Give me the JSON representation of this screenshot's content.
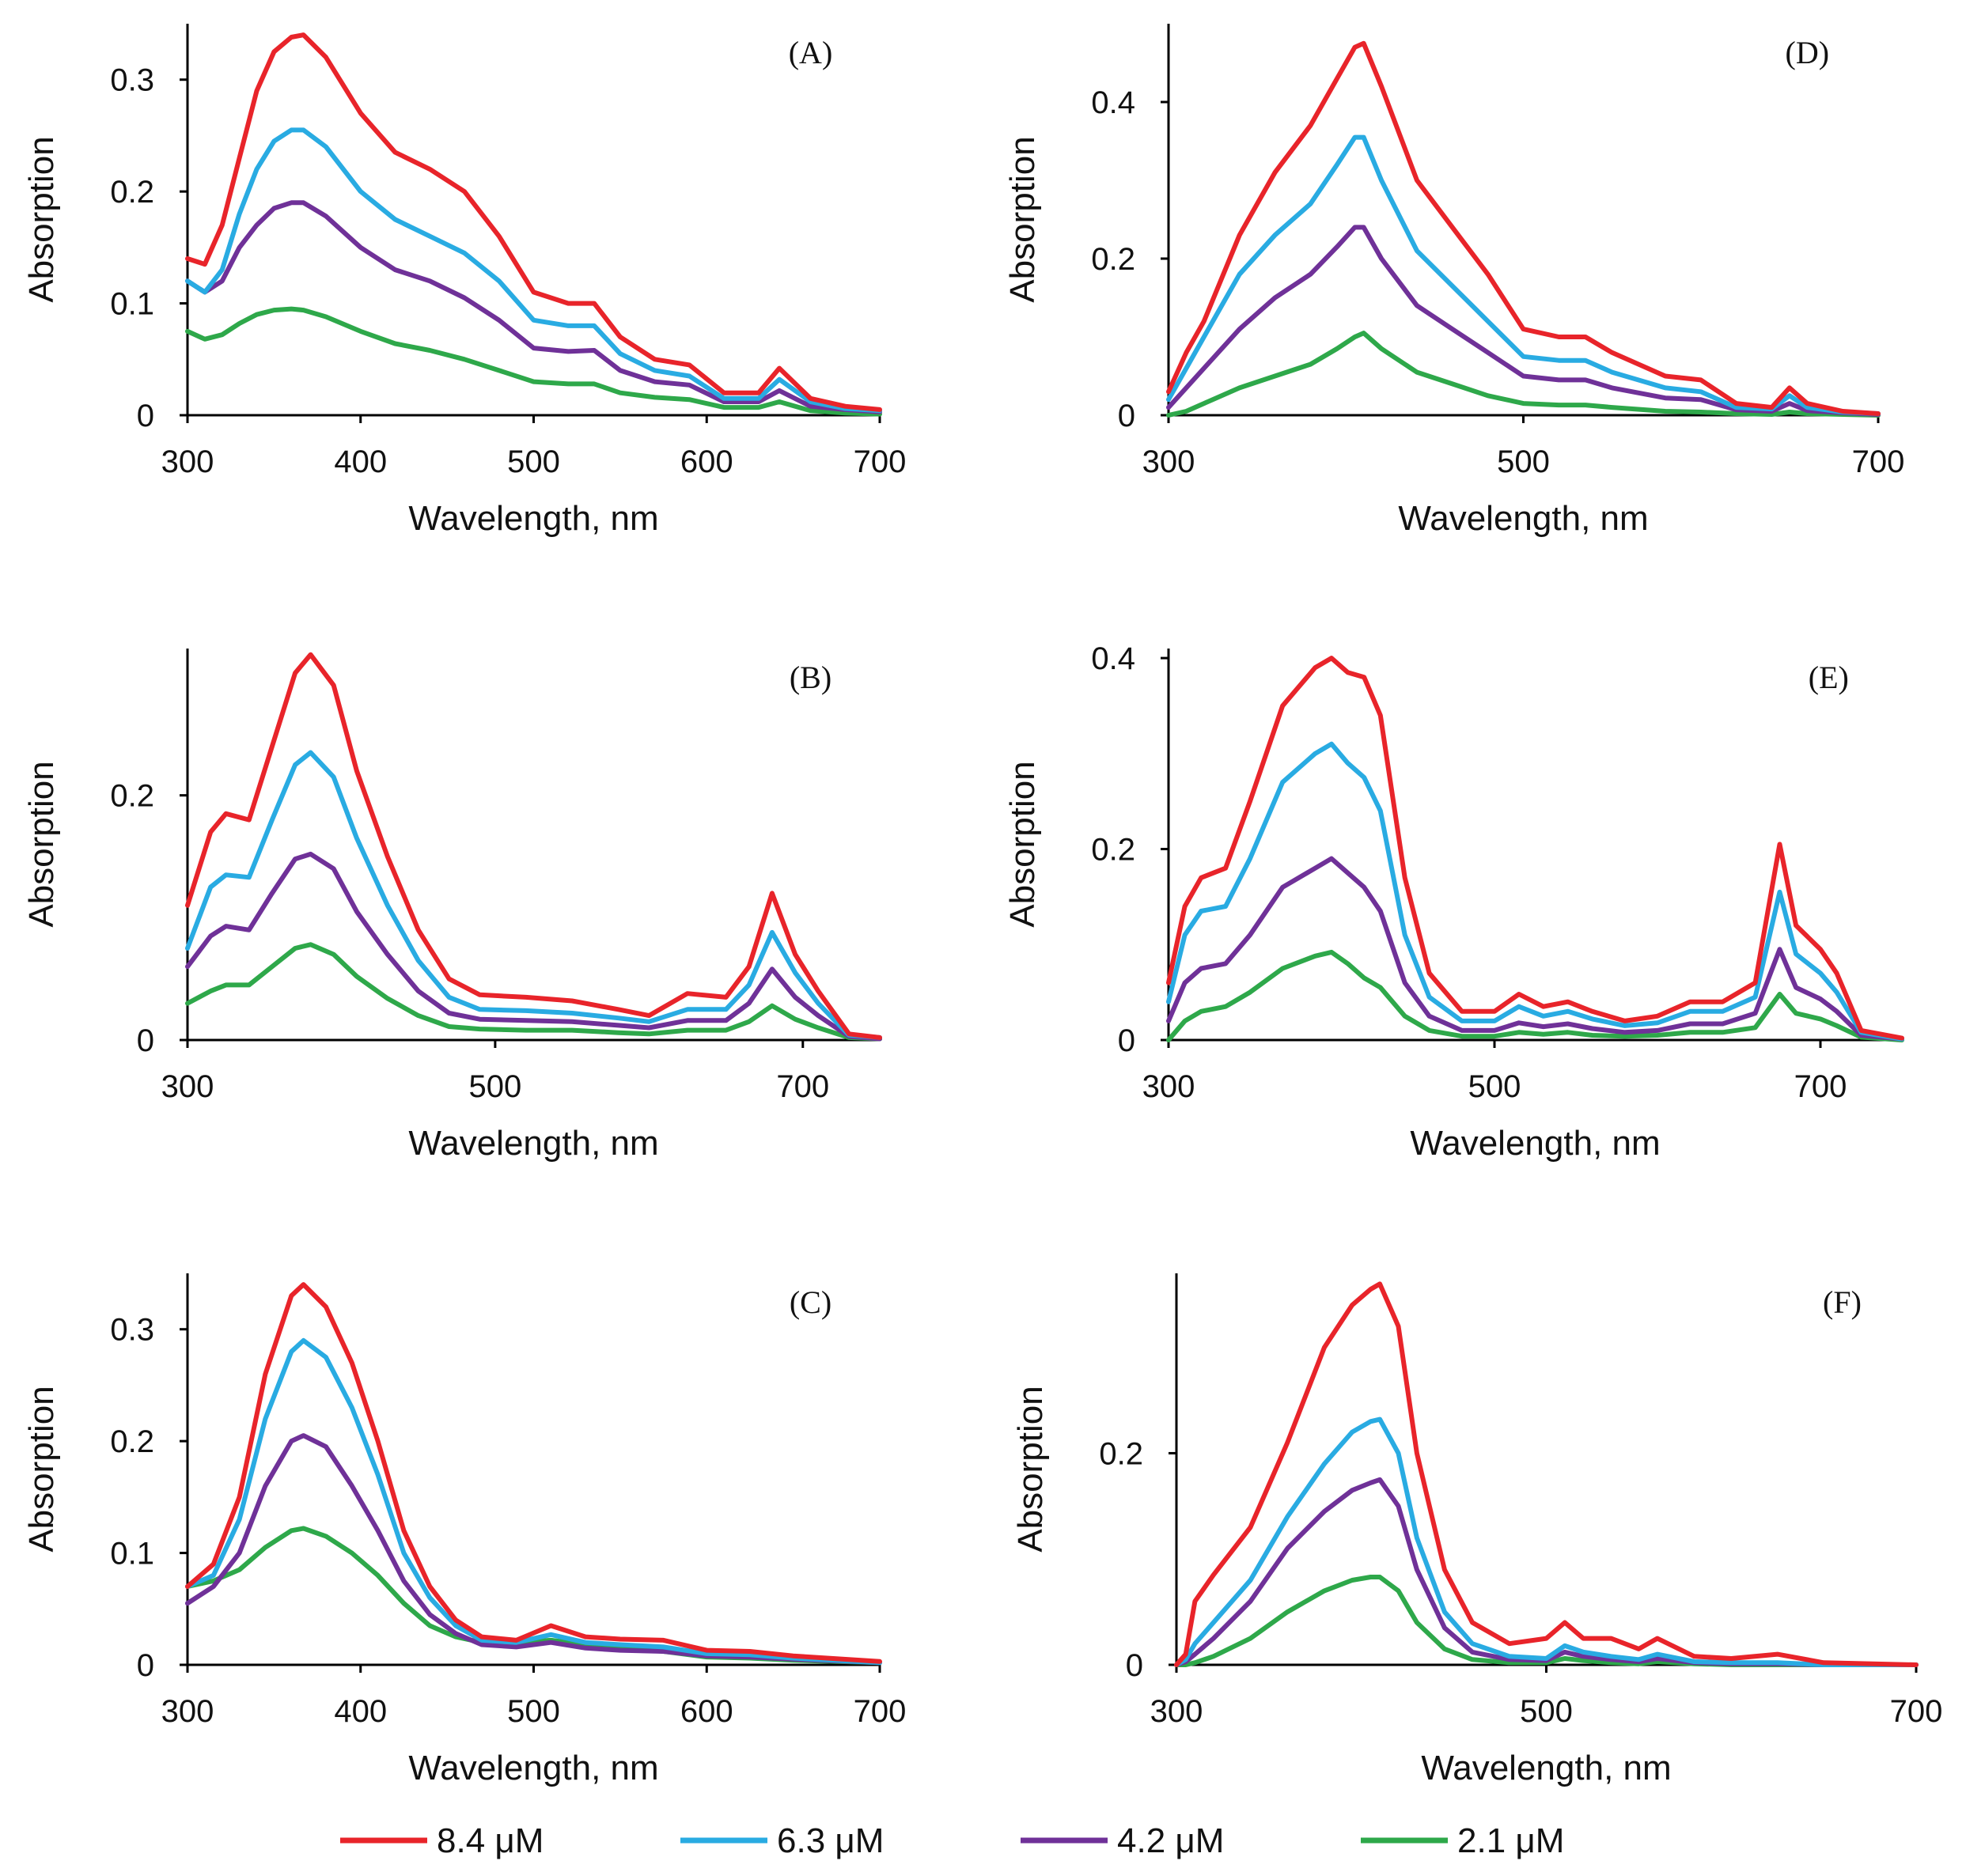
{
  "legend": [
    {
      "label": "8.4 μM",
      "color": "#e8242a"
    },
    {
      "label": "6.3 μM",
      "color": "#29abe2"
    },
    {
      "label": "4.2 μM",
      "color": "#6f3198"
    },
    {
      "label": "2.1 μM",
      "color": "#2ea84a"
    }
  ],
  "chart_data": [
    {
      "type": "line",
      "panel": "(A)",
      "xlabel": "Wavelength, nm",
      "ylabel": "Absorption",
      "xlim": [
        300,
        700
      ],
      "ylim": [
        0,
        0.35
      ],
      "xticks": [
        300,
        400,
        500,
        600,
        700
      ],
      "xtick_labels": [
        "300",
        "400",
        "500",
        "600",
        "700"
      ],
      "yticks": [
        0,
        0.1,
        0.2,
        0.3
      ],
      "ytick_labels": [
        "0",
        "0.1",
        "0.2",
        "0.3"
      ],
      "x": [
        300,
        310,
        320,
        330,
        340,
        350,
        360,
        367,
        380,
        400,
        420,
        440,
        460,
        480,
        500,
        520,
        535,
        550,
        570,
        590,
        610,
        630,
        642,
        660,
        680,
        700
      ],
      "series": [
        {
          "name": "8.4 μM",
          "values": [
            0.14,
            0.135,
            0.17,
            0.23,
            0.29,
            0.325,
            0.338,
            0.34,
            0.32,
            0.27,
            0.235,
            0.22,
            0.2,
            0.16,
            0.11,
            0.1,
            0.1,
            0.07,
            0.05,
            0.045,
            0.02,
            0.02,
            0.042,
            0.015,
            0.008,
            0.005
          ]
        },
        {
          "name": "6.3 μM",
          "values": [
            0.12,
            0.11,
            0.13,
            0.18,
            0.22,
            0.245,
            0.255,
            0.255,
            0.24,
            0.2,
            0.175,
            0.16,
            0.145,
            0.12,
            0.085,
            0.08,
            0.08,
            0.055,
            0.04,
            0.035,
            0.015,
            0.015,
            0.032,
            0.012,
            0.006,
            0.004
          ]
        },
        {
          "name": "4.2 μM",
          "values": [
            0.12,
            0.11,
            0.12,
            0.15,
            0.17,
            0.185,
            0.19,
            0.19,
            0.178,
            0.15,
            0.13,
            0.12,
            0.105,
            0.085,
            0.06,
            0.057,
            0.058,
            0.04,
            0.03,
            0.027,
            0.012,
            0.012,
            0.022,
            0.008,
            0.005,
            0.003
          ]
        },
        {
          "name": "2.1 μM",
          "values": [
            0.075,
            0.068,
            0.072,
            0.082,
            0.09,
            0.094,
            0.095,
            0.094,
            0.088,
            0.075,
            0.064,
            0.058,
            0.05,
            0.04,
            0.03,
            0.028,
            0.028,
            0.02,
            0.016,
            0.014,
            0.007,
            0.007,
            0.012,
            0.004,
            0.002,
            0.001
          ]
        }
      ]
    },
    {
      "type": "line",
      "panel": "(B)",
      "xlabel": "Wavelength, nm",
      "ylabel": "Absorption",
      "xlim": [
        300,
        750
      ],
      "ylim": [
        0,
        0.32
      ],
      "xticks": [
        300,
        500,
        700
      ],
      "xtick_labels": [
        "300",
        "500",
        "700"
      ],
      "yticks": [
        0,
        0.2
      ],
      "ytick_labels": [
        "0",
        "0.2"
      ],
      "x": [
        300,
        315,
        325,
        340,
        355,
        370,
        380,
        395,
        410,
        430,
        450,
        470,
        490,
        520,
        550,
        580,
        600,
        625,
        650,
        665,
        680,
        695,
        710,
        730,
        750
      ],
      "series": [
        {
          "name": "8.4 μM",
          "values": [
            0.11,
            0.17,
            0.185,
            0.18,
            0.24,
            0.3,
            0.315,
            0.29,
            0.22,
            0.15,
            0.09,
            0.05,
            0.037,
            0.035,
            0.032,
            0.025,
            0.02,
            0.038,
            0.035,
            0.06,
            0.12,
            0.07,
            0.04,
            0.005,
            0.002
          ]
        },
        {
          "name": "6.3 μM",
          "values": [
            0.075,
            0.125,
            0.135,
            0.133,
            0.18,
            0.225,
            0.235,
            0.215,
            0.165,
            0.11,
            0.065,
            0.035,
            0.025,
            0.024,
            0.022,
            0.018,
            0.015,
            0.025,
            0.025,
            0.045,
            0.088,
            0.055,
            0.03,
            0.004,
            0.002
          ]
        },
        {
          "name": "4.2 μM",
          "values": [
            0.06,
            0.085,
            0.093,
            0.09,
            0.12,
            0.148,
            0.152,
            0.14,
            0.105,
            0.07,
            0.04,
            0.022,
            0.017,
            0.016,
            0.015,
            0.012,
            0.01,
            0.016,
            0.016,
            0.03,
            0.058,
            0.035,
            0.02,
            0.003,
            0.001
          ]
        },
        {
          "name": "2.1 μM",
          "values": [
            0.03,
            0.04,
            0.045,
            0.045,
            0.06,
            0.075,
            0.078,
            0.07,
            0.052,
            0.034,
            0.02,
            0.011,
            0.009,
            0.008,
            0.008,
            0.006,
            0.005,
            0.008,
            0.008,
            0.015,
            0.028,
            0.017,
            0.01,
            0.002,
            0.001
          ]
        }
      ]
    },
    {
      "type": "line",
      "panel": "(C)",
      "xlabel": "Wavelength, nm",
      "ylabel": "Absorption",
      "xlim": [
        300,
        700
      ],
      "ylim": [
        0,
        0.35
      ],
      "xticks": [
        300,
        400,
        500,
        600,
        700
      ],
      "xtick_labels": [
        "300",
        "400",
        "500",
        "600",
        "700"
      ],
      "yticks": [
        0,
        0.1,
        0.2,
        0.3
      ],
      "ytick_labels": [
        "0",
        "0.1",
        "0.2",
        "0.3"
      ],
      "x": [
        300,
        315,
        330,
        345,
        360,
        367,
        380,
        395,
        410,
        425,
        440,
        455,
        470,
        490,
        510,
        530,
        550,
        575,
        600,
        625,
        650,
        700
      ],
      "series": [
        {
          "name": "8.4 μM",
          "values": [
            0.07,
            0.09,
            0.15,
            0.26,
            0.33,
            0.34,
            0.32,
            0.27,
            0.2,
            0.12,
            0.07,
            0.04,
            0.025,
            0.022,
            0.035,
            0.025,
            0.023,
            0.022,
            0.013,
            0.012,
            0.008,
            0.003
          ]
        },
        {
          "name": "6.3 μM",
          "values": [
            0.07,
            0.08,
            0.13,
            0.22,
            0.28,
            0.29,
            0.275,
            0.23,
            0.17,
            0.1,
            0.06,
            0.035,
            0.022,
            0.02,
            0.027,
            0.02,
            0.018,
            0.016,
            0.01,
            0.009,
            0.006,
            0.002
          ]
        },
        {
          "name": "4.2 μM",
          "values": [
            0.055,
            0.07,
            0.1,
            0.16,
            0.2,
            0.205,
            0.195,
            0.16,
            0.12,
            0.075,
            0.045,
            0.028,
            0.018,
            0.016,
            0.02,
            0.015,
            0.013,
            0.012,
            0.008,
            0.007,
            0.005,
            0.002
          ]
        },
        {
          "name": "2.1 μM",
          "values": [
            0.07,
            0.075,
            0.085,
            0.105,
            0.12,
            0.122,
            0.115,
            0.1,
            0.08,
            0.055,
            0.035,
            0.025,
            0.02,
            0.02,
            0.022,
            0.018,
            0.015,
            0.012,
            0.007,
            0.006,
            0.004,
            0.002
          ]
        }
      ]
    },
    {
      "type": "line",
      "panel": "(D)",
      "xlabel": "Wavelength, nm",
      "ylabel": "Absorption",
      "xlim": [
        300,
        700
      ],
      "ylim": [
        0,
        0.5
      ],
      "xticks": [
        300,
        500,
        700
      ],
      "xtick_labels": [
        "300",
        "500",
        "700"
      ],
      "yticks": [
        0,
        0.2,
        0.4
      ],
      "ytick_labels": [
        "0",
        "0.2",
        "0.4"
      ],
      "x": [
        300,
        310,
        320,
        340,
        360,
        380,
        395,
        405,
        410,
        420,
        440,
        460,
        480,
        500,
        520,
        535,
        550,
        580,
        600,
        620,
        640,
        650,
        660,
        680,
        700
      ],
      "series": [
        {
          "name": "8.4 μM",
          "values": [
            0.03,
            0.08,
            0.12,
            0.23,
            0.31,
            0.37,
            0.43,
            0.47,
            0.475,
            0.42,
            0.3,
            0.24,
            0.18,
            0.11,
            0.1,
            0.1,
            0.08,
            0.05,
            0.045,
            0.015,
            0.01,
            0.035,
            0.015,
            0.005,
            0.002
          ]
        },
        {
          "name": "6.3 μM",
          "values": [
            0.02,
            0.06,
            0.1,
            0.18,
            0.23,
            0.27,
            0.32,
            0.355,
            0.355,
            0.3,
            0.21,
            0.165,
            0.12,
            0.075,
            0.07,
            0.07,
            0.055,
            0.035,
            0.03,
            0.01,
            0.008,
            0.025,
            0.01,
            0.004,
            0.002
          ]
        },
        {
          "name": "4.2 μM",
          "values": [
            0.01,
            0.035,
            0.06,
            0.11,
            0.15,
            0.18,
            0.215,
            0.24,
            0.24,
            0.2,
            0.14,
            0.11,
            0.08,
            0.05,
            0.045,
            0.045,
            0.035,
            0.022,
            0.02,
            0.007,
            0.005,
            0.015,
            0.006,
            0.003,
            0.001
          ]
        },
        {
          "name": "2.1 μM",
          "values": [
            0.0,
            0.005,
            0.015,
            0.035,
            0.05,
            0.065,
            0.085,
            0.1,
            0.105,
            0.085,
            0.055,
            0.04,
            0.025,
            0.015,
            0.013,
            0.013,
            0.01,
            0.005,
            0.004,
            0.002,
            0.001,
            0.004,
            0.002,
            0.001,
            0.0
          ]
        }
      ]
    },
    {
      "type": "line",
      "panel": "(E)",
      "xlabel": "Wavelength, nm",
      "ylabel": "Absorption",
      "xlim": [
        300,
        750
      ],
      "ylim": [
        0,
        0.41
      ],
      "xticks": [
        300,
        500,
        700
      ],
      "xtick_labels": [
        "300",
        "500",
        "700"
      ],
      "yticks": [
        0,
        0.2,
        0.4
      ],
      "ytick_labels": [
        "0",
        "0.2",
        "0.4"
      ],
      "x": [
        300,
        310,
        320,
        335,
        350,
        370,
        390,
        400,
        410,
        420,
        430,
        445,
        460,
        480,
        500,
        515,
        530,
        545,
        560,
        580,
        600,
        620,
        640,
        660,
        675,
        685,
        700,
        710,
        725,
        750
      ],
      "series": [
        {
          "name": "8.4 μM",
          "values": [
            0.06,
            0.14,
            0.17,
            0.18,
            0.25,
            0.35,
            0.39,
            0.4,
            0.385,
            0.38,
            0.34,
            0.17,
            0.07,
            0.03,
            0.03,
            0.048,
            0.035,
            0.04,
            0.03,
            0.02,
            0.025,
            0.04,
            0.04,
            0.06,
            0.205,
            0.12,
            0.095,
            0.07,
            0.01,
            0.002
          ]
        },
        {
          "name": "6.3 μM",
          "values": [
            0.04,
            0.11,
            0.135,
            0.14,
            0.19,
            0.27,
            0.3,
            0.31,
            0.29,
            0.275,
            0.24,
            0.11,
            0.045,
            0.02,
            0.02,
            0.035,
            0.025,
            0.03,
            0.022,
            0.015,
            0.018,
            0.03,
            0.03,
            0.045,
            0.155,
            0.09,
            0.07,
            0.05,
            0.008,
            0.001
          ]
        },
        {
          "name": "4.2 μM",
          "values": [
            0.02,
            0.06,
            0.075,
            0.08,
            0.11,
            0.16,
            0.18,
            0.19,
            0.175,
            0.16,
            0.135,
            0.06,
            0.025,
            0.01,
            0.01,
            0.018,
            0.014,
            0.017,
            0.012,
            0.008,
            0.01,
            0.017,
            0.017,
            0.028,
            0.095,
            0.055,
            0.043,
            0.03,
            0.005,
            0.001
          ]
        },
        {
          "name": "2.1 μM",
          "values": [
            0.0,
            0.02,
            0.03,
            0.035,
            0.05,
            0.075,
            0.088,
            0.092,
            0.08,
            0.065,
            0.055,
            0.025,
            0.01,
            0.004,
            0.004,
            0.008,
            0.006,
            0.008,
            0.005,
            0.004,
            0.005,
            0.008,
            0.008,
            0.013,
            0.048,
            0.028,
            0.022,
            0.015,
            0.003,
            0.0
          ]
        }
      ]
    },
    {
      "type": "line",
      "panel": "(F)",
      "xlabel": "Wavelength, nm",
      "ylabel": "Absorption",
      "xlim": [
        300,
        700
      ],
      "ylim": [
        0,
        0.37
      ],
      "xticks": [
        300,
        500,
        700
      ],
      "xtick_labels": [
        "300",
        "500",
        "700"
      ],
      "yticks": [
        0,
        0.2
      ],
      "ytick_labels": [
        "0",
        "0.2"
      ],
      "x": [
        300,
        305,
        310,
        320,
        340,
        360,
        380,
        395,
        405,
        410,
        420,
        430,
        445,
        460,
        480,
        500,
        510,
        520,
        535,
        550,
        560,
        580,
        600,
        625,
        650,
        700
      ],
      "series": [
        {
          "name": "8.4 μM",
          "values": [
            0.0,
            0.01,
            0.06,
            0.085,
            0.13,
            0.21,
            0.3,
            0.34,
            0.355,
            0.36,
            0.32,
            0.2,
            0.09,
            0.04,
            0.02,
            0.025,
            0.04,
            0.025,
            0.025,
            0.015,
            0.025,
            0.008,
            0.006,
            0.01,
            0.002,
            0.0
          ]
        },
        {
          "name": "6.3 μM",
          "values": [
            0.0,
            0.005,
            0.02,
            0.04,
            0.08,
            0.14,
            0.19,
            0.22,
            0.23,
            0.232,
            0.2,
            0.12,
            0.05,
            0.02,
            0.008,
            0.006,
            0.018,
            0.012,
            0.008,
            0.005,
            0.01,
            0.003,
            0.002,
            0.002,
            0.0,
            0.0
          ]
        },
        {
          "name": "4.2 μM",
          "values": [
            0.0,
            0.003,
            0.01,
            0.025,
            0.06,
            0.11,
            0.145,
            0.165,
            0.172,
            0.175,
            0.15,
            0.09,
            0.035,
            0.012,
            0.005,
            0.004,
            0.012,
            0.008,
            0.005,
            0.003,
            0.006,
            0.002,
            0.001,
            0.001,
            0.0,
            0.0
          ]
        },
        {
          "name": "2.1 μM",
          "values": [
            0.0,
            0.0,
            0.002,
            0.008,
            0.025,
            0.05,
            0.07,
            0.08,
            0.083,
            0.083,
            0.07,
            0.04,
            0.015,
            0.005,
            0.002,
            0.002,
            0.006,
            0.004,
            0.002,
            0.001,
            0.003,
            0.001,
            0.0,
            0.0,
            0.0,
            0.0
          ]
        }
      ]
    }
  ]
}
